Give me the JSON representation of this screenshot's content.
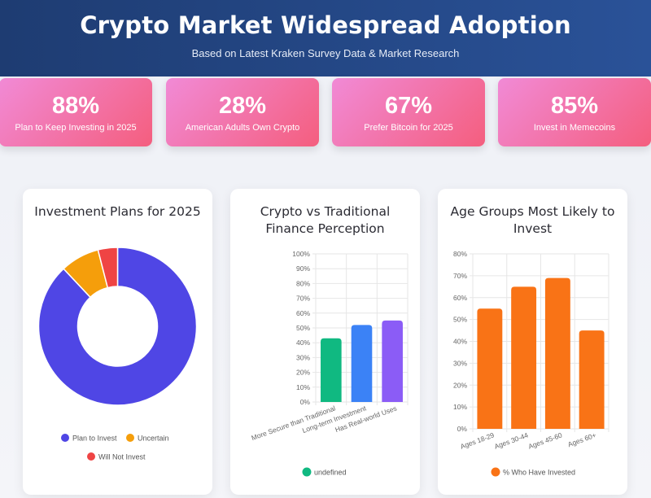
{
  "header": {
    "title": "Crypto Market Widespread Adoption",
    "subtitle": "Based on Latest Kraken Survey Data & Market Research"
  },
  "stats": [
    {
      "value": "88%",
      "label": "Plan to Keep Investing in 2025"
    },
    {
      "value": "28%",
      "label": "American Adults Own Crypto"
    },
    {
      "value": "67%",
      "label": "Prefer Bitcoin for 2025"
    },
    {
      "value": "85%",
      "label": "Invest in Memecoins"
    }
  ],
  "colors": {
    "donut": [
      "#4f46e5",
      "#f59e0b",
      "#ef4444"
    ],
    "perception": [
      "#10b981",
      "#3b82f6",
      "#8b5cf6"
    ],
    "age": "#f97316"
  },
  "chart_data": [
    {
      "type": "pie",
      "title": "Investment Plans for 2025",
      "labels": [
        "Plan to Invest",
        "Uncertain",
        "Will Not Invest"
      ],
      "values": [
        88,
        8,
        4
      ],
      "donut": true,
      "legend": "bottom"
    },
    {
      "type": "bar",
      "title": "Crypto vs Traditional Finance Perception",
      "categories": [
        "More Secure than Traditional",
        "Long-term Investment",
        "Has Real-world Uses"
      ],
      "values": [
        43,
        52,
        55
      ],
      "ylim": [
        0,
        100
      ],
      "yticks": [
        "0%",
        "10%",
        "20%",
        "30%",
        "40%",
        "50%",
        "60%",
        "70%",
        "80%",
        "90%",
        "100%"
      ],
      "series": [
        {
          "name": "undefined",
          "values": [
            43,
            52,
            55
          ]
        }
      ],
      "legend": "bottom"
    },
    {
      "type": "bar",
      "title": "Age Groups Most Likely to Invest",
      "categories": [
        "Ages 18-29",
        "Ages 30-44",
        "Ages 45-60",
        "Ages 60+"
      ],
      "values": [
        55,
        65,
        69,
        45
      ],
      "ylim": [
        0,
        80
      ],
      "yticks": [
        "0%",
        "10%",
        "20%",
        "30%",
        "40%",
        "50%",
        "60%",
        "70%",
        "80%"
      ],
      "series": [
        {
          "name": "% Who Have Invested",
          "values": [
            55,
            65,
            69,
            45
          ]
        }
      ],
      "legend": "bottom"
    }
  ]
}
